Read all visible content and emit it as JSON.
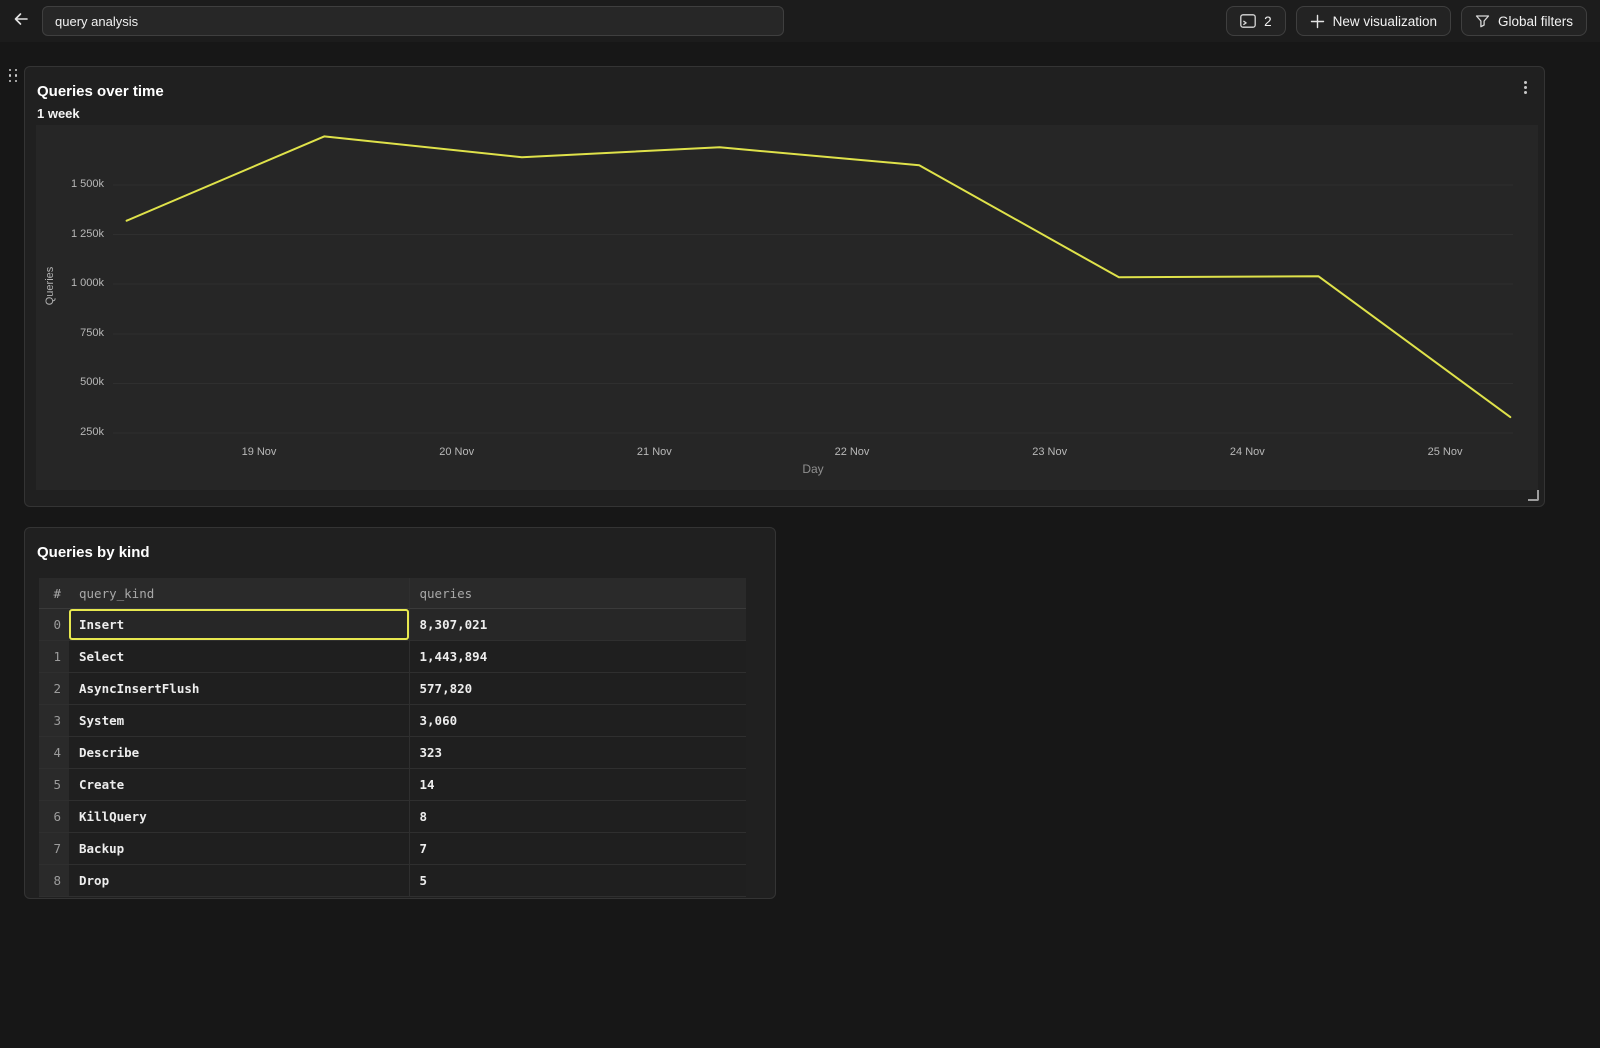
{
  "topbar": {
    "back_button": {
      "icon": "arrow-left"
    },
    "title_input": {
      "value": "query analysis"
    },
    "visualization_count_button": {
      "icon": "console-panel",
      "label": "2"
    },
    "new_visualization_button": {
      "icon": "plus",
      "label": "New visualization"
    },
    "global_filters_button": {
      "icon": "funnel",
      "label": "Global filters"
    }
  },
  "chart_panel": {
    "title": "Queries over time",
    "subtitle": "1 week",
    "menu_icon": "kebab-vertical"
  },
  "chart_data": {
    "type": "line",
    "title": "Queries over time",
    "subtitle": "1 week",
    "xlabel": "Day",
    "ylabel": "Queries",
    "line_color": "#dfe24a",
    "grid": true,
    "legend": "none",
    "x_ticks": [
      {
        "day": 19,
        "label": "19 Nov"
      },
      {
        "day": 20,
        "label": "20 Nov"
      },
      {
        "day": 21,
        "label": "21 Nov"
      },
      {
        "day": 22,
        "label": "22 Nov"
      },
      {
        "day": 23,
        "label": "23 Nov"
      },
      {
        "day": 24,
        "label": "24 Nov"
      },
      {
        "day": 25,
        "label": "25 Nov"
      }
    ],
    "y_ticks": [
      {
        "value": 250000,
        "label": "250k"
      },
      {
        "value": 500000,
        "label": "500k"
      },
      {
        "value": 750000,
        "label": "750k"
      },
      {
        "value": 1000000,
        "label": "1 000k"
      },
      {
        "value": 1250000,
        "label": "1 250k"
      },
      {
        "value": 1500000,
        "label": "1 500k"
      }
    ],
    "y_range_estimate": [
      90000,
      1800000
    ],
    "points": [
      {
        "label": "18 Nov",
        "day": 18.33,
        "queries": 1320000
      },
      {
        "label": "19 Nov",
        "day": 19.33,
        "queries": 1745000
      },
      {
        "label": "20 Nov",
        "day": 20.33,
        "queries": 1640000
      },
      {
        "label": "21 Nov",
        "day": 21.33,
        "queries": 1690000
      },
      {
        "label": "22 Nov",
        "day": 22.34,
        "queries": 1600000
      },
      {
        "label": "23 Nov",
        "day": 23.35,
        "queries": 1035000
      },
      {
        "label": "24 Nov",
        "day": 24.36,
        "queries": 1040000
      },
      {
        "label": "25 Nov",
        "day": 25.33,
        "queries": 330000
      }
    ]
  },
  "table_panel": {
    "title": "Queries by kind",
    "columns": [
      {
        "key": "index",
        "label": "#"
      },
      {
        "key": "query_kind",
        "label": "query_kind"
      },
      {
        "key": "queries",
        "label": "queries"
      }
    ],
    "rows": [
      {
        "index": "0",
        "query_kind": "Insert",
        "queries": "8,307,021",
        "selected": true
      },
      {
        "index": "1",
        "query_kind": "Select",
        "queries": "1,443,894",
        "selected": false
      },
      {
        "index": "2",
        "query_kind": "AsyncInsertFlush",
        "queries": "577,820",
        "selected": false
      },
      {
        "index": "3",
        "query_kind": "System",
        "queries": "3,060",
        "selected": false
      },
      {
        "index": "4",
        "query_kind": "Describe",
        "queries": "323",
        "selected": false
      },
      {
        "index": "5",
        "query_kind": "Create",
        "queries": "14",
        "selected": false
      },
      {
        "index": "6",
        "query_kind": "KillQuery",
        "queries": "8",
        "selected": false
      },
      {
        "index": "7",
        "query_kind": "Backup",
        "queries": "7",
        "selected": false
      },
      {
        "index": "8",
        "query_kind": "Drop",
        "queries": "5",
        "selected": false
      }
    ]
  },
  "colors": {
    "accent_yellow": "#dfe24a",
    "selection_border": "#e7e84f",
    "page_bg": "#171717",
    "panel_bg": "#202020",
    "plot_bg": "#262626"
  }
}
